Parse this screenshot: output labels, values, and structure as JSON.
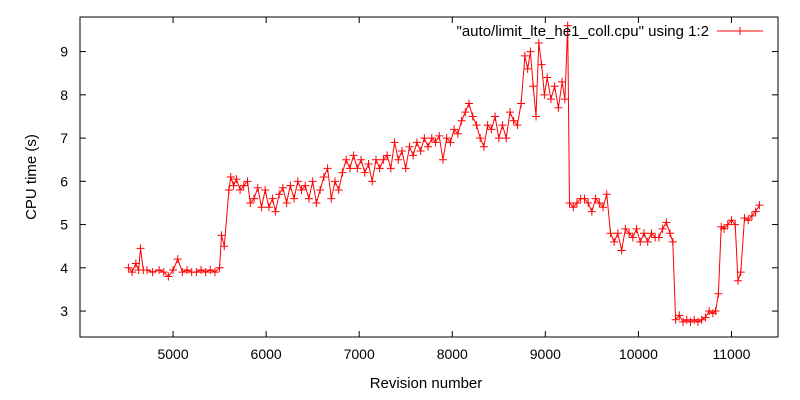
{
  "chart_data": {
    "type": "line",
    "xlabel": "Revision number",
    "ylabel": "CPU time (s)",
    "xlim": [
      4000,
      11500
    ],
    "ylim": [
      2.4,
      9.8
    ],
    "xticks": [
      5000,
      6000,
      7000,
      8000,
      9000,
      10000,
      11000
    ],
    "xtick_labels": [
      "5000",
      "6000",
      "7000",
      "8000",
      "9000",
      "10000",
      "11000"
    ],
    "yticks": [
      3,
      4,
      5,
      6,
      7,
      8,
      9
    ],
    "ytick_labels": [
      "3",
      "4",
      "5",
      "6",
      "7",
      "8",
      "9"
    ],
    "grid": false,
    "legend_position": "top-right",
    "series": [
      {
        "name": "\"auto/limit_lte_he1_coll.cpu\" using 1:2",
        "color": "#ff0000",
        "marker": "plus",
        "points": [
          [
            4520,
            4.0
          ],
          [
            4560,
            3.9
          ],
          [
            4600,
            4.1
          ],
          [
            4630,
            3.95
          ],
          [
            4650,
            4.45
          ],
          [
            4680,
            3.95
          ],
          [
            4720,
            3.95
          ],
          [
            4780,
            3.9
          ],
          [
            4850,
            3.95
          ],
          [
            4900,
            3.9
          ],
          [
            4950,
            3.8
          ],
          [
            5000,
            3.95
          ],
          [
            5050,
            4.2
          ],
          [
            5100,
            3.9
          ],
          [
            5150,
            3.95
          ],
          [
            5200,
            3.9
          ],
          [
            5250,
            3.9
          ],
          [
            5300,
            3.95
          ],
          [
            5350,
            3.9
          ],
          [
            5400,
            3.95
          ],
          [
            5450,
            3.9
          ],
          [
            5500,
            4.0
          ],
          [
            5520,
            4.75
          ],
          [
            5550,
            4.5
          ],
          [
            5600,
            5.8
          ],
          [
            5620,
            6.1
          ],
          [
            5650,
            5.9
          ],
          [
            5680,
            6.05
          ],
          [
            5720,
            5.8
          ],
          [
            5760,
            5.9
          ],
          [
            5800,
            6.0
          ],
          [
            5830,
            5.5
          ],
          [
            5870,
            5.6
          ],
          [
            5910,
            5.85
          ],
          [
            5950,
            5.4
          ],
          [
            5990,
            5.8
          ],
          [
            6030,
            5.4
          ],
          [
            6070,
            5.6
          ],
          [
            6100,
            5.3
          ],
          [
            6140,
            5.7
          ],
          [
            6180,
            5.85
          ],
          [
            6220,
            5.5
          ],
          [
            6260,
            5.9
          ],
          [
            6300,
            5.6
          ],
          [
            6340,
            6.0
          ],
          [
            6380,
            5.8
          ],
          [
            6420,
            5.9
          ],
          [
            6460,
            5.6
          ],
          [
            6500,
            6.0
          ],
          [
            6540,
            5.5
          ],
          [
            6580,
            5.8
          ],
          [
            6620,
            6.1
          ],
          [
            6660,
            6.3
          ],
          [
            6700,
            5.6
          ],
          [
            6740,
            6.0
          ],
          [
            6780,
            5.8
          ],
          [
            6820,
            6.2
          ],
          [
            6860,
            6.5
          ],
          [
            6900,
            6.3
          ],
          [
            6940,
            6.6
          ],
          [
            6980,
            6.3
          ],
          [
            7020,
            6.5
          ],
          [
            7060,
            6.2
          ],
          [
            7100,
            6.4
          ],
          [
            7140,
            6.0
          ],
          [
            7180,
            6.5
          ],
          [
            7220,
            6.3
          ],
          [
            7260,
            6.5
          ],
          [
            7300,
            6.6
          ],
          [
            7340,
            6.3
          ],
          [
            7380,
            6.9
          ],
          [
            7420,
            6.5
          ],
          [
            7460,
            6.7
          ],
          [
            7500,
            6.3
          ],
          [
            7540,
            6.8
          ],
          [
            7580,
            6.6
          ],
          [
            7620,
            6.9
          ],
          [
            7660,
            6.7
          ],
          [
            7700,
            7.0
          ],
          [
            7740,
            6.8
          ],
          [
            7780,
            7.0
          ],
          [
            7820,
            6.9
          ],
          [
            7860,
            7.05
          ],
          [
            7900,
            6.5
          ],
          [
            7940,
            7.0
          ],
          [
            7980,
            6.9
          ],
          [
            8020,
            7.2
          ],
          [
            8060,
            7.1
          ],
          [
            8100,
            7.4
          ],
          [
            8140,
            7.6
          ],
          [
            8180,
            7.8
          ],
          [
            8220,
            7.5
          ],
          [
            8260,
            7.3
          ],
          [
            8300,
            7.0
          ],
          [
            8340,
            6.8
          ],
          [
            8380,
            7.3
          ],
          [
            8420,
            7.2
          ],
          [
            8460,
            7.5
          ],
          [
            8500,
            7.0
          ],
          [
            8540,
            7.3
          ],
          [
            8580,
            7.0
          ],
          [
            8620,
            7.6
          ],
          [
            8660,
            7.4
          ],
          [
            8700,
            7.3
          ],
          [
            8740,
            7.8
          ],
          [
            8780,
            8.9
          ],
          [
            8810,
            8.6
          ],
          [
            8840,
            9.0
          ],
          [
            8870,
            8.2
          ],
          [
            8900,
            7.5
          ],
          [
            8930,
            9.2
          ],
          [
            8960,
            8.7
          ],
          [
            8990,
            8.0
          ],
          [
            9020,
            8.4
          ],
          [
            9060,
            7.9
          ],
          [
            9100,
            8.2
          ],
          [
            9140,
            7.7
          ],
          [
            9180,
            8.3
          ],
          [
            9210,
            7.9
          ],
          [
            9240,
            9.6
          ],
          [
            9260,
            5.5
          ],
          [
            9300,
            5.4
          ],
          [
            9340,
            5.5
          ],
          [
            9380,
            5.6
          ],
          [
            9420,
            5.6
          ],
          [
            9460,
            5.5
          ],
          [
            9500,
            5.3
          ],
          [
            9540,
            5.6
          ],
          [
            9580,
            5.5
          ],
          [
            9620,
            5.4
          ],
          [
            9660,
            5.7
          ],
          [
            9700,
            4.8
          ],
          [
            9740,
            4.6
          ],
          [
            9780,
            4.8
          ],
          [
            9820,
            4.4
          ],
          [
            9860,
            4.9
          ],
          [
            9900,
            4.8
          ],
          [
            9940,
            4.7
          ],
          [
            9980,
            4.9
          ],
          [
            10020,
            4.6
          ],
          [
            10060,
            4.8
          ],
          [
            10100,
            4.6
          ],
          [
            10140,
            4.8
          ],
          [
            10180,
            4.7
          ],
          [
            10220,
            4.7
          ],
          [
            10260,
            4.9
          ],
          [
            10300,
            5.05
          ],
          [
            10340,
            4.8
          ],
          [
            10370,
            4.6
          ],
          [
            10400,
            2.8
          ],
          [
            10440,
            2.9
          ],
          [
            10480,
            2.75
          ],
          [
            10520,
            2.8
          ],
          [
            10560,
            2.75
          ],
          [
            10600,
            2.8
          ],
          [
            10640,
            2.75
          ],
          [
            10680,
            2.8
          ],
          [
            10720,
            2.85
          ],
          [
            10760,
            3.0
          ],
          [
            10800,
            2.95
          ],
          [
            10830,
            3.0
          ],
          [
            10860,
            3.4
          ],
          [
            10890,
            4.95
          ],
          [
            10920,
            4.9
          ],
          [
            10960,
            5.0
          ],
          [
            11000,
            5.1
          ],
          [
            11040,
            5.0
          ],
          [
            11070,
            3.7
          ],
          [
            11100,
            3.9
          ],
          [
            11140,
            5.15
          ],
          [
            11180,
            5.1
          ],
          [
            11220,
            5.2
          ],
          [
            11260,
            5.3
          ],
          [
            11300,
            5.45
          ]
        ]
      }
    ]
  }
}
